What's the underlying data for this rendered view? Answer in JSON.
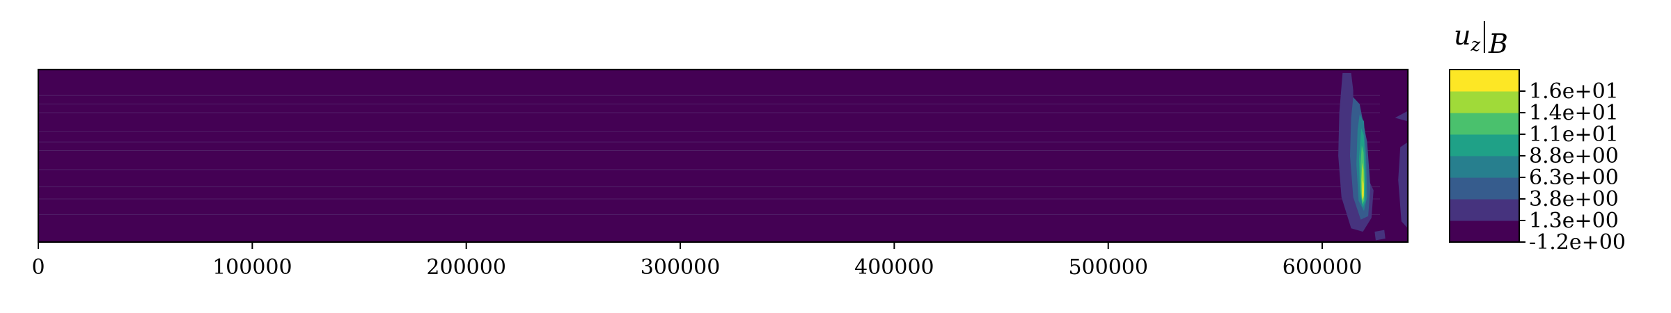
{
  "chart_data": {
    "type": "heatmap",
    "subtype": "filled-contour",
    "title": "",
    "xlabel": "",
    "ylabel": "",
    "xlim": [
      0,
      640000
    ],
    "x_ticks": [
      0,
      100000,
      200000,
      300000,
      400000,
      500000,
      600000
    ],
    "x_tick_labels": [
      "0",
      "100000",
      "200000",
      "300000",
      "400000",
      "500000",
      "600000"
    ],
    "y_ticks_shown": false,
    "grid": false,
    "colorbar": {
      "title_base": "u",
      "title_sub": "z",
      "title_bar_sub": "B",
      "placement": "right",
      "levels": [
        -1.2,
        1.3,
        3.8,
        6.3,
        8.8,
        11,
        14,
        16
      ],
      "level_labels": [
        "-1.2e+00",
        "1.3e+00",
        "3.8e+00",
        "6.3e+00",
        "8.8e+00",
        "1.1e+01",
        "1.4e+01",
        "1.6e+01"
      ],
      "band_colors": [
        "#440154",
        "#46337e",
        "#365c8d",
        "#277f8e",
        "#1fa187",
        "#4ac16d",
        "#a0da39",
        "#fde725"
      ]
    },
    "colormap": "viridis",
    "features": [
      {
        "description": "localized positive anomaly",
        "x_center": 620000,
        "x_extent": [
          605000,
          633000
        ],
        "max_value": 16
      },
      {
        "description": "weak secondary feature near right edge",
        "x_center": 638000,
        "max_value": 3.8
      }
    ]
  }
}
